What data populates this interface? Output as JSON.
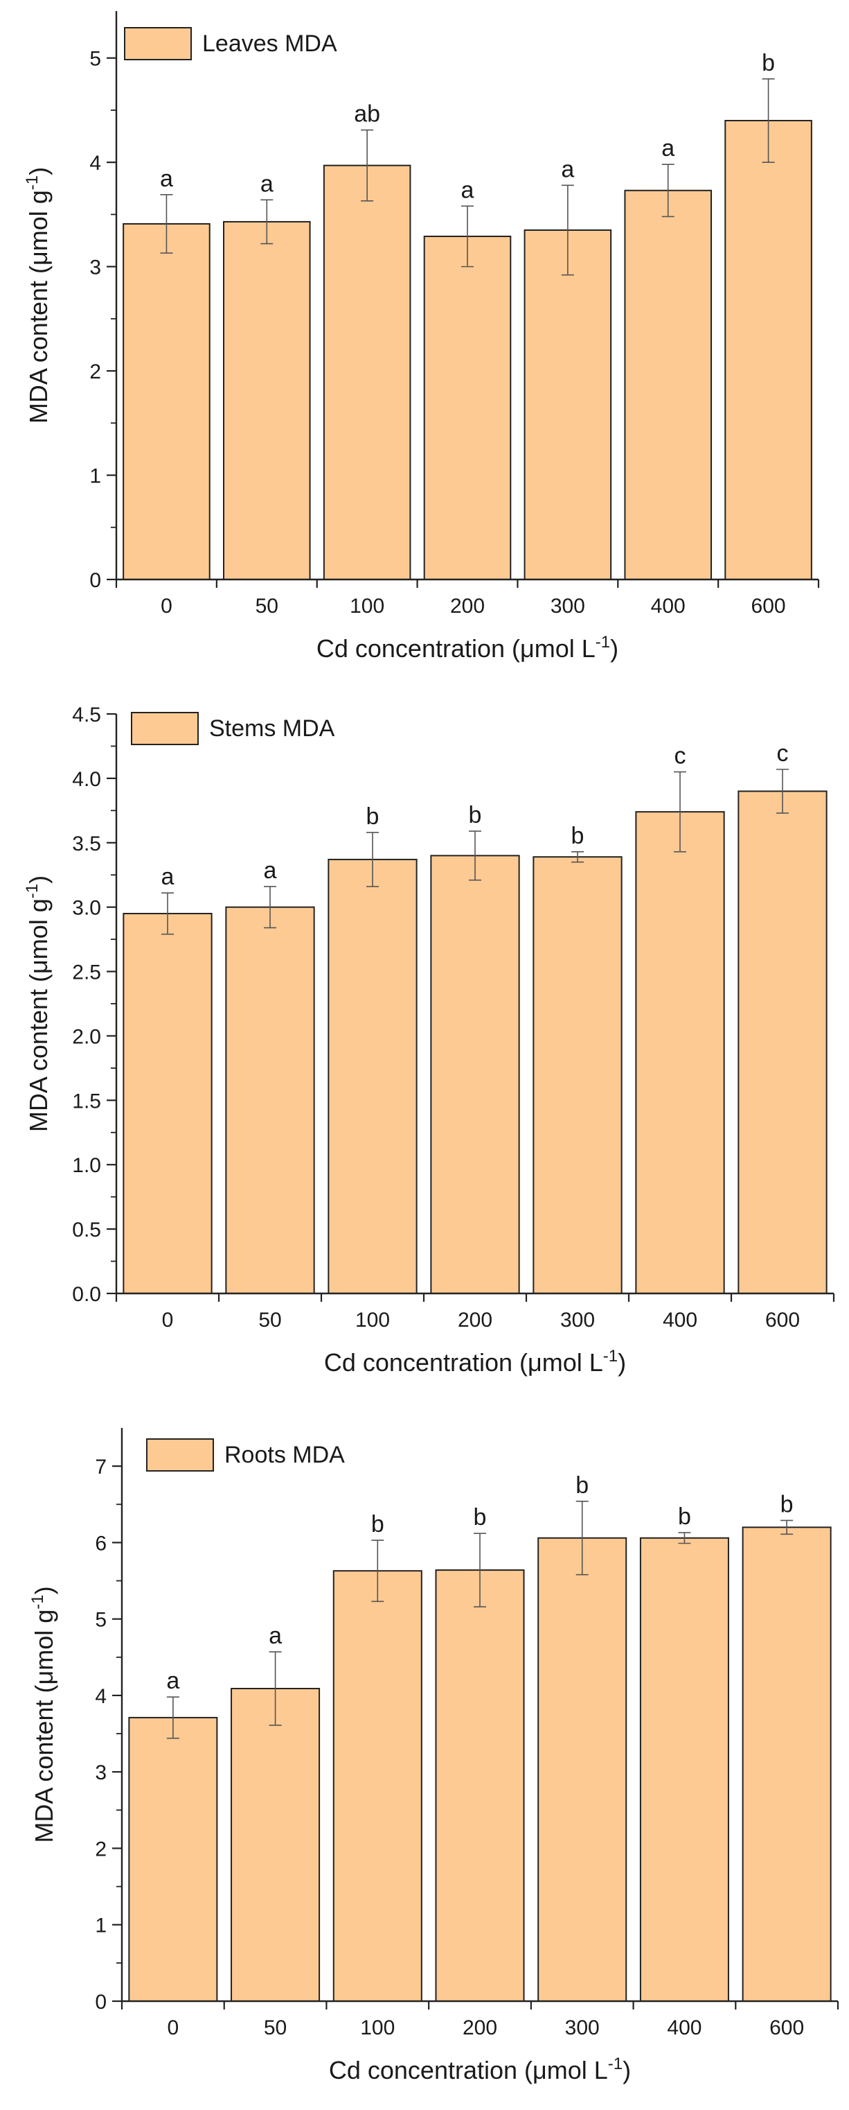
{
  "chart_data": [
    {
      "type": "bar",
      "title": "",
      "legend": "Leaves MDA",
      "legend_position": "top-left",
      "xlabel": "Cd concentration (μmol L",
      "xlabel_sup": "-1",
      "xlabel_end": ")",
      "ylabel": "MDA content (μmol g",
      "ylabel_sup": "-1",
      "ylabel_end": ")",
      "categories": [
        "0",
        "50",
        "100",
        "200",
        "300",
        "400",
        "600"
      ],
      "values": [
        3.41,
        3.43,
        3.97,
        3.29,
        3.35,
        3.73,
        4.4
      ],
      "errors": [
        0.28,
        0.21,
        0.34,
        0.29,
        0.43,
        0.25,
        0.4
      ],
      "significance": [
        "a",
        "a",
        "ab",
        "a",
        "a",
        "a",
        "b"
      ],
      "ylim": [
        0,
        5.45
      ],
      "yticks": [
        "0",
        "1",
        "2",
        "3",
        "4",
        "5"
      ],
      "ytick_values": [
        0,
        1,
        2,
        3,
        4,
        5
      ],
      "grid": false,
      "bar_color": "#FDCA93"
    },
    {
      "type": "bar",
      "title": "",
      "legend": "Stems MDA",
      "legend_position": "top-left",
      "xlabel": "Cd concentration (μmol L",
      "xlabel_sup": "-1",
      "xlabel_end": ")",
      "ylabel": "MDA content (μmol g",
      "ylabel_sup": "-1",
      "ylabel_end": ")",
      "categories": [
        "0",
        "50",
        "100",
        "200",
        "300",
        "400",
        "600"
      ],
      "values": [
        2.95,
        3.0,
        3.37,
        3.4,
        3.39,
        3.74,
        3.9
      ],
      "errors": [
        0.16,
        0.16,
        0.21,
        0.19,
        0.04,
        0.31,
        0.17
      ],
      "significance": [
        "a",
        "a",
        "b",
        "b",
        "b",
        "c",
        "c"
      ],
      "ylim": [
        0,
        4.5
      ],
      "yticks": [
        "0.0",
        "0.5",
        "1.0",
        "1.5",
        "2.0",
        "2.5",
        "3.0",
        "3.5",
        "4.0",
        "4.5"
      ],
      "ytick_values": [
        0,
        0.5,
        1,
        1.5,
        2,
        2.5,
        3,
        3.5,
        4,
        4.5
      ],
      "grid": false,
      "bar_color": "#FDCA93"
    },
    {
      "type": "bar",
      "title": "",
      "legend": "Roots MDA",
      "legend_position": "top-left",
      "xlabel": "Cd concentration (μmol L",
      "xlabel_sup": "-1",
      "xlabel_end": ")",
      "ylabel": "MDA content (μmol g",
      "ylabel_sup": "-1",
      "ylabel_end": ")",
      "categories": [
        "0",
        "50",
        "100",
        "200",
        "300",
        "400",
        "600"
      ],
      "values": [
        3.71,
        4.09,
        5.63,
        5.64,
        6.06,
        6.06,
        6.2
      ],
      "errors": [
        0.27,
        0.48,
        0.4,
        0.48,
        0.48,
        0.07,
        0.09
      ],
      "significance": [
        "a",
        "a",
        "b",
        "b",
        "b",
        "b",
        "b"
      ],
      "ylim": [
        0,
        7.5
      ],
      "yticks": [
        "0",
        "1",
        "2",
        "3",
        "4",
        "5",
        "6",
        "7"
      ],
      "ytick_values": [
        0,
        1,
        2,
        3,
        4,
        5,
        6,
        7
      ],
      "grid": false,
      "bar_color": "#FDCA93"
    }
  ]
}
